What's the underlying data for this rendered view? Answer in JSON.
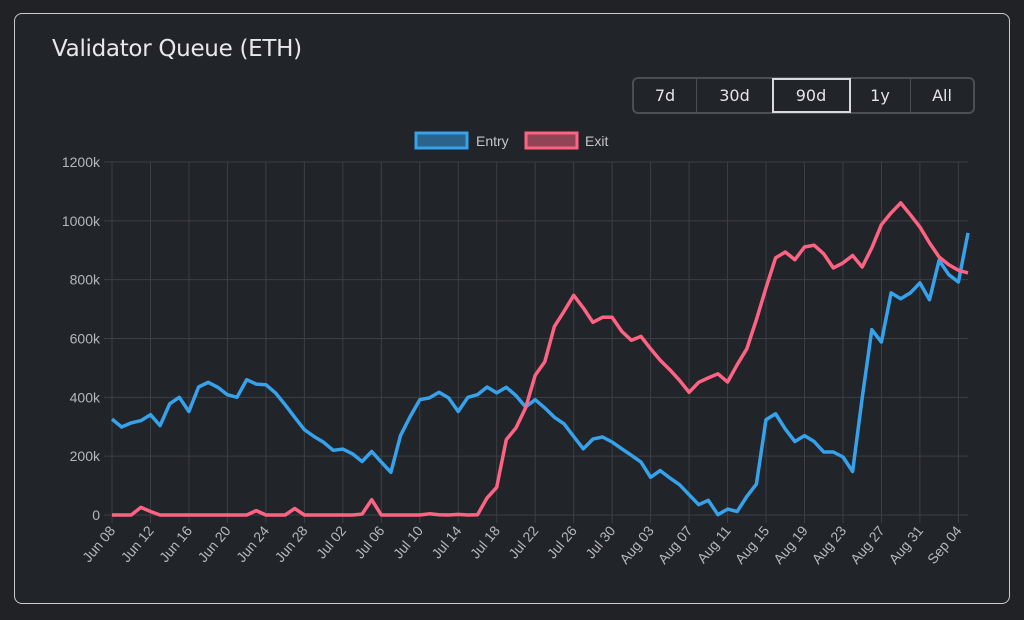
{
  "title": "Validator Queue (ETH)",
  "range_buttons": [
    {
      "label": "7d",
      "active": false
    },
    {
      "label": "30d",
      "active": false
    },
    {
      "label": "90d",
      "active": true
    },
    {
      "label": "1y",
      "active": false
    },
    {
      "label": "All",
      "active": false
    }
  ],
  "chart_data": {
    "type": "line",
    "title": "",
    "xlabel": "",
    "ylabel": "",
    "x_start": "Jun 08",
    "x_end": "Sep 05",
    "ylim": [
      0,
      1200000
    ],
    "y_ticks": [
      "0",
      "200k",
      "400k",
      "600k",
      "800k",
      "1000k",
      "1200k"
    ],
    "x_ticks": [
      "Jun 08",
      "Jun 12",
      "Jun 16",
      "Jun 20",
      "Jun 24",
      "Jun 28",
      "Jul 02",
      "Jul 06",
      "Jul 10",
      "Jul 14",
      "Jul 18",
      "Jul 22",
      "Jul 26",
      "Jul 30",
      "Aug 03",
      "Aug 07",
      "Aug 11",
      "Aug 15",
      "Aug 19",
      "Aug 23",
      "Aug 27",
      "Aug 31",
      "Sep 04"
    ],
    "grid": true,
    "legend": "top-center",
    "series": [
      {
        "name": "Entry",
        "color": "#36a2eb",
        "values_k": [
          326,
          299,
          313,
          321,
          341,
          304,
          378,
          400,
          352,
          435,
          451,
          434,
          409,
          400,
          460,
          445,
          443,
          415,
          375,
          332,
          290,
          267,
          247,
          220,
          224,
          208,
          182,
          216,
          180,
          145,
          270,
          335,
          392,
          398,
          417,
          398,
          352,
          400,
          409,
          435,
          415,
          434,
          406,
          367,
          392,
          364,
          332,
          310,
          267,
          225,
          258,
          265,
          248,
          225,
          203,
          180,
          128,
          151,
          126,
          103,
          69,
          35,
          50,
          1,
          20,
          12,
          63,
          105,
          324,
          344,
          292,
          250,
          270,
          250,
          214,
          214,
          197,
          148,
          398,
          630,
          588,
          755,
          735,
          755,
          789,
          732,
          866,
          817,
          792,
          959
        ]
      },
      {
        "name": "Exit",
        "color": "#ff6384",
        "values_k": [
          0,
          0,
          0,
          26,
          12,
          0,
          0,
          0,
          0,
          0,
          0,
          0,
          0,
          0,
          0,
          15,
          0,
          0,
          0,
          22,
          0,
          0,
          0,
          0,
          0,
          0,
          3,
          52,
          0,
          0,
          0,
          0,
          0,
          4,
          1,
          0,
          2,
          0,
          1,
          58,
          94,
          256,
          296,
          364,
          475,
          521,
          641,
          692,
          747,
          704,
          655,
          672,
          672,
          624,
          594,
          607,
          565,
          526,
          494,
          458,
          417,
          451,
          466,
          480,
          452,
          511,
          565,
          664,
          772,
          874,
          894,
          868,
          911,
          917,
          888,
          840,
          857,
          882,
          843,
          908,
          987,
          1027,
          1061,
          1021,
          979,
          925,
          877,
          851,
          832,
          823
        ]
      }
    ]
  }
}
